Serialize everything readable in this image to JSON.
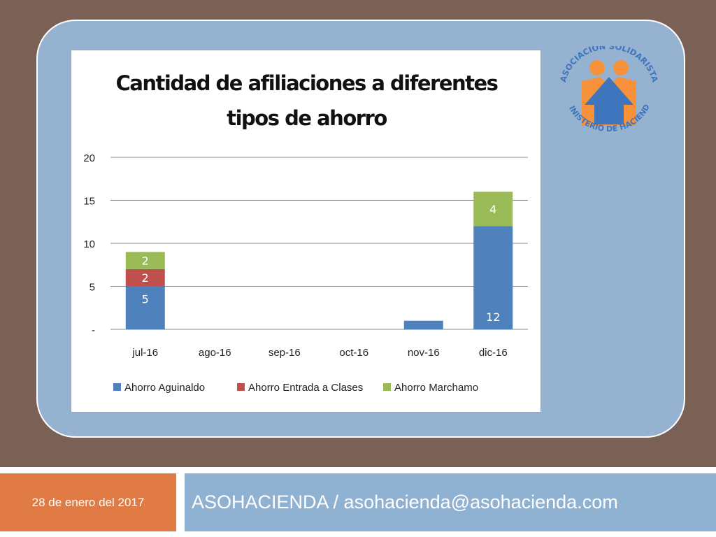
{
  "footer": {
    "date": "28 de enero del 2017",
    "organization": "ASOHACIENDA / asohacienda@asohacienda.com"
  },
  "logo": {
    "text_top": "ASOCIACION SOLIDARISTA",
    "text_bottom": "MINISTERIO DE HACIENDA",
    "colors": {
      "orange": "#f7923a",
      "blue": "#3f75bd"
    }
  },
  "colors": {
    "background": "#7b6155",
    "panel": "#95b3d0",
    "footer_left": "#e07b45",
    "footer_right": "#8fb2d2"
  },
  "chart_data": {
    "type": "bar",
    "stacked": true,
    "title_lines": [
      "Cantidad de afiliaciones a diferentes",
      "tipos de ahorro"
    ],
    "categories": [
      "jul-16",
      "ago-16",
      "sep-16",
      "oct-16",
      "nov-16",
      "dic-16"
    ],
    "series": [
      {
        "name": "Ahorro Aguinaldo",
        "color": "#4f81bd",
        "values": [
          5,
          0,
          0,
          0,
          1,
          12
        ],
        "labels": [
          "5",
          "",
          "",
          "",
          "",
          "12"
        ]
      },
      {
        "name": "Ahorro Entrada a Clases",
        "color": "#c0504d",
        "values": [
          2,
          0,
          0,
          0,
          0,
          0
        ],
        "labels": [
          "2",
          "",
          "",
          "",
          "",
          ""
        ]
      },
      {
        "name": "Ahorro Marchamo",
        "color": "#9bbb59",
        "values": [
          2,
          0,
          0,
          0,
          0,
          4
        ],
        "labels": [
          "2",
          "",
          "",
          "",
          "",
          "4"
        ]
      }
    ],
    "ylim": [
      0,
      20
    ],
    "yticks": [
      0,
      5,
      10,
      15,
      20
    ],
    "ytick_labels": [
      "-",
      "5",
      "10",
      "15",
      "20"
    ],
    "grid": true,
    "legend_position": "bottom"
  }
}
